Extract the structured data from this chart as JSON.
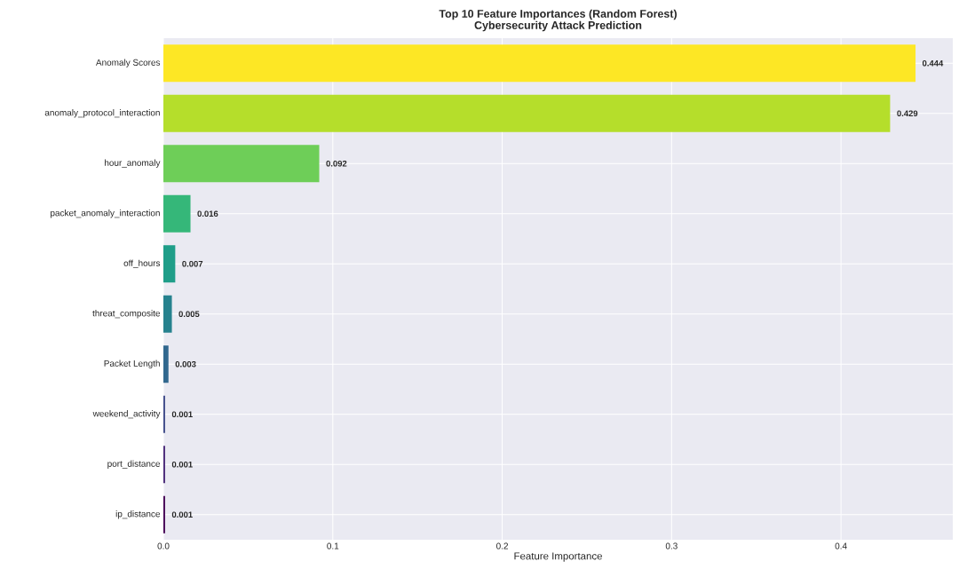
{
  "chart_data": {
    "type": "bar",
    "orientation": "horizontal",
    "title": "Top 10 Feature Importances (Random Forest)",
    "subtitle": "Cybersecurity Attack Prediction",
    "xlabel": "Feature Importance",
    "categories": [
      "Anomaly Scores",
      "anomaly_protocol_interaction",
      "hour_anomaly",
      "packet_anomaly_interaction",
      "off_hours",
      "threat_composite",
      "Packet Length",
      "weekend_activity",
      "port_distance",
      "ip_distance"
    ],
    "values": [
      0.444,
      0.429,
      0.092,
      0.016,
      0.007,
      0.005,
      0.003,
      0.001,
      0.001,
      0.001
    ],
    "colors": [
      "#fde725",
      "#b5de2b",
      "#6ece58",
      "#35b779",
      "#1f9e89",
      "#26828e",
      "#31688e",
      "#3e4989",
      "#482878",
      "#440154"
    ],
    "xlim": [
      0,
      0.466
    ],
    "xticks": [
      {
        "value": 0,
        "label": "0.0"
      },
      {
        "value": 0.1,
        "label": "0.1"
      },
      {
        "value": 0.2,
        "label": "0.2"
      },
      {
        "value": 0.3,
        "label": "0.3"
      },
      {
        "value": 0.4,
        "label": "0.4"
      }
    ],
    "grid": true,
    "data_labels": true
  }
}
